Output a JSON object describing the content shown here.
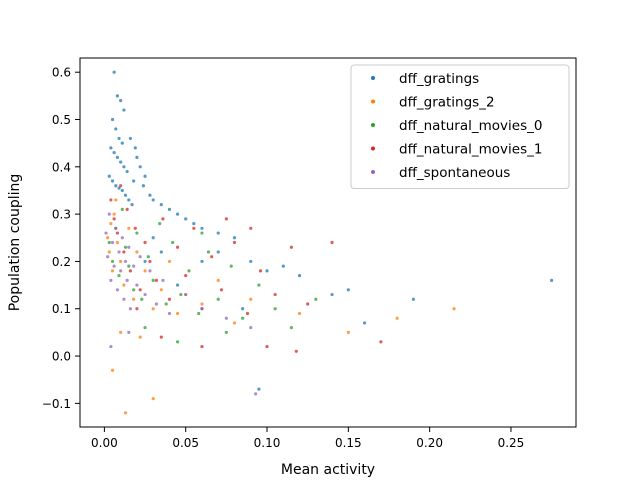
{
  "chart_data": {
    "type": "scatter",
    "title": "",
    "xlabel": "Mean activity",
    "ylabel": "Population coupling",
    "xlim": [
      -0.015,
      0.29
    ],
    "ylim": [
      -0.15,
      0.63
    ],
    "xticks": [
      0.0,
      0.05,
      0.1,
      0.15,
      0.2,
      0.25
    ],
    "xtick_labels": [
      "0.00",
      "0.05",
      "0.10",
      "0.15",
      "0.20",
      "0.25"
    ],
    "yticks": [
      -0.1,
      0.0,
      0.1,
      0.2,
      0.3,
      0.4,
      0.5,
      0.6
    ],
    "ytick_labels": [
      "−0.1",
      "0.0",
      "0.1",
      "0.2",
      "0.3",
      "0.4",
      "0.5",
      "0.6"
    ],
    "grid": false,
    "legend_position": "top-right",
    "series": [
      {
        "name": "dff_gratings",
        "color": "#1f77b4",
        "points": [
          [
            0.006,
            0.6
          ],
          [
            0.008,
            0.55
          ],
          [
            0.01,
            0.54
          ],
          [
            0.012,
            0.52
          ],
          [
            0.005,
            0.5
          ],
          [
            0.007,
            0.48
          ],
          [
            0.009,
            0.46
          ],
          [
            0.011,
            0.45
          ],
          [
            0.004,
            0.44
          ],
          [
            0.006,
            0.43
          ],
          [
            0.008,
            0.42
          ],
          [
            0.01,
            0.41
          ],
          [
            0.012,
            0.4
          ],
          [
            0.014,
            0.39
          ],
          [
            0.003,
            0.38
          ],
          [
            0.005,
            0.37
          ],
          [
            0.007,
            0.36
          ],
          [
            0.009,
            0.355
          ],
          [
            0.011,
            0.35
          ],
          [
            0.013,
            0.34
          ],
          [
            0.015,
            0.33
          ],
          [
            0.017,
            0.32
          ],
          [
            0.02,
            0.42
          ],
          [
            0.022,
            0.4
          ],
          [
            0.025,
            0.38
          ],
          [
            0.018,
            0.37
          ],
          [
            0.016,
            0.46
          ],
          [
            0.019,
            0.44
          ],
          [
            0.024,
            0.36
          ],
          [
            0.028,
            0.34
          ],
          [
            0.03,
            0.33
          ],
          [
            0.035,
            0.32
          ],
          [
            0.04,
            0.31
          ],
          [
            0.045,
            0.3
          ],
          [
            0.05,
            0.29
          ],
          [
            0.055,
            0.28
          ],
          [
            0.06,
            0.27
          ],
          [
            0.07,
            0.26
          ],
          [
            0.08,
            0.25
          ],
          [
            0.06,
            0.2
          ],
          [
            0.07,
            0.22
          ],
          [
            0.09,
            0.2
          ],
          [
            0.1,
            0.18
          ],
          [
            0.11,
            0.19
          ],
          [
            0.12,
            0.17
          ],
          [
            0.14,
            0.13
          ],
          [
            0.15,
            0.14
          ],
          [
            0.16,
            0.07
          ],
          [
            0.19,
            0.12
          ],
          [
            0.275,
            0.16
          ],
          [
            0.095,
            -0.07
          ],
          [
            0.085,
            0.1
          ],
          [
            0.03,
            0.25
          ],
          [
            0.035,
            0.22
          ],
          [
            0.025,
            0.2
          ],
          [
            0.045,
            0.15
          ]
        ]
      },
      {
        "name": "dff_gratings_2",
        "color": "#ff7f0e",
        "points": [
          [
            0.002,
            0.25
          ],
          [
            0.003,
            0.22
          ],
          [
            0.004,
            0.28
          ],
          [
            0.005,
            0.18
          ],
          [
            0.006,
            0.3
          ],
          [
            0.008,
            0.24
          ],
          [
            0.01,
            0.2
          ],
          [
            0.012,
            0.15
          ],
          [
            0.015,
            0.27
          ],
          [
            0.018,
            0.12
          ],
          [
            0.02,
            0.22
          ],
          [
            0.025,
            0.18
          ],
          [
            0.03,
            0.1
          ],
          [
            0.035,
            0.14
          ],
          [
            0.04,
            0.2
          ],
          [
            0.045,
            0.09
          ],
          [
            0.05,
            0.13
          ],
          [
            0.06,
            0.11
          ],
          [
            0.07,
            0.16
          ],
          [
            0.08,
            0.07
          ],
          [
            0.09,
            0.12
          ],
          [
            0.12,
            0.09
          ],
          [
            0.15,
            0.05
          ],
          [
            0.18,
            0.08
          ],
          [
            0.215,
            0.1
          ],
          [
            0.005,
            -0.03
          ],
          [
            0.013,
            -0.12
          ],
          [
            0.03,
            -0.09
          ],
          [
            0.01,
            0.05
          ],
          [
            0.022,
            0.04
          ],
          [
            0.007,
            0.33
          ]
        ]
      },
      {
        "name": "dff_natural_movies_0",
        "color": "#2ca02c",
        "points": [
          [
            0.003,
            0.24
          ],
          [
            0.005,
            0.2
          ],
          [
            0.007,
            0.27
          ],
          [
            0.009,
            0.17
          ],
          [
            0.011,
            0.31
          ],
          [
            0.013,
            0.23
          ],
          [
            0.015,
            0.19
          ],
          [
            0.018,
            0.14
          ],
          [
            0.02,
            0.26
          ],
          [
            0.023,
            0.12
          ],
          [
            0.027,
            0.21
          ],
          [
            0.03,
            0.16
          ],
          [
            0.034,
            0.28
          ],
          [
            0.038,
            0.11
          ],
          [
            0.042,
            0.24
          ],
          [
            0.047,
            0.13
          ],
          [
            0.052,
            0.18
          ],
          [
            0.058,
            0.09
          ],
          [
            0.064,
            0.22
          ],
          [
            0.07,
            0.12
          ],
          [
            0.078,
            0.19
          ],
          [
            0.085,
            0.08
          ],
          [
            0.095,
            0.15
          ],
          [
            0.105,
            0.1
          ],
          [
            0.115,
            0.06
          ],
          [
            0.13,
            0.12
          ],
          [
            0.045,
            0.03
          ],
          [
            0.025,
            0.06
          ],
          [
            0.06,
            0.26
          ],
          [
            0.075,
            0.05
          ]
        ]
      },
      {
        "name": "dff_natural_movies_1",
        "color": "#d62728",
        "points": [
          [
            0.004,
            0.33
          ],
          [
            0.006,
            0.29
          ],
          [
            0.008,
            0.26
          ],
          [
            0.01,
            0.36
          ],
          [
            0.012,
            0.22
          ],
          [
            0.014,
            0.31
          ],
          [
            0.016,
            0.18
          ],
          [
            0.019,
            0.27
          ],
          [
            0.022,
            0.14
          ],
          [
            0.025,
            0.24
          ],
          [
            0.028,
            0.2
          ],
          [
            0.032,
            0.16
          ],
          [
            0.036,
            0.29
          ],
          [
            0.04,
            0.12
          ],
          [
            0.045,
            0.23
          ],
          [
            0.05,
            0.17
          ],
          [
            0.055,
            0.27
          ],
          [
            0.06,
            0.1
          ],
          [
            0.066,
            0.21
          ],
          [
            0.072,
            0.14
          ],
          [
            0.08,
            0.24
          ],
          [
            0.088,
            0.09
          ],
          [
            0.096,
            0.18
          ],
          [
            0.105,
            0.13
          ],
          [
            0.115,
            0.23
          ],
          [
            0.125,
            0.11
          ],
          [
            0.14,
            0.24
          ],
          [
            0.17,
            0.03
          ],
          [
            0.09,
            0.27
          ],
          [
            0.06,
            0.02
          ],
          [
            0.1,
            0.02
          ],
          [
            0.118,
            0.01
          ],
          [
            0.035,
            0.04
          ],
          [
            0.02,
            0.1
          ],
          [
            0.075,
            0.29
          ]
        ]
      },
      {
        "name": "dff_spontaneous",
        "color": "#9467bd",
        "points": [
          [
            0.001,
            0.26
          ],
          [
            0.002,
            0.21
          ],
          [
            0.003,
            0.3
          ],
          [
            0.004,
            0.16
          ],
          [
            0.005,
            0.24
          ],
          [
            0.006,
            0.19
          ],
          [
            0.007,
            0.27
          ],
          [
            0.008,
            0.14
          ],
          [
            0.009,
            0.22
          ],
          [
            0.01,
            0.18
          ],
          [
            0.011,
            0.25
          ],
          [
            0.012,
            0.12
          ],
          [
            0.013,
            0.2
          ],
          [
            0.014,
            0.16
          ],
          [
            0.015,
            0.23
          ],
          [
            0.016,
            0.1
          ],
          [
            0.018,
            0.19
          ],
          [
            0.02,
            0.15
          ],
          [
            0.022,
            0.21
          ],
          [
            0.025,
            0.13
          ],
          [
            0.028,
            0.18
          ],
          [
            0.032,
            0.11
          ],
          [
            0.036,
            0.16
          ],
          [
            0.04,
            0.09
          ],
          [
            0.05,
            0.13
          ],
          [
            0.06,
            0.1
          ],
          [
            0.075,
            0.08
          ],
          [
            0.09,
            0.06
          ],
          [
            0.015,
            0.05
          ],
          [
            0.004,
            0.02
          ],
          [
            0.093,
            -0.08
          ]
        ]
      }
    ]
  }
}
